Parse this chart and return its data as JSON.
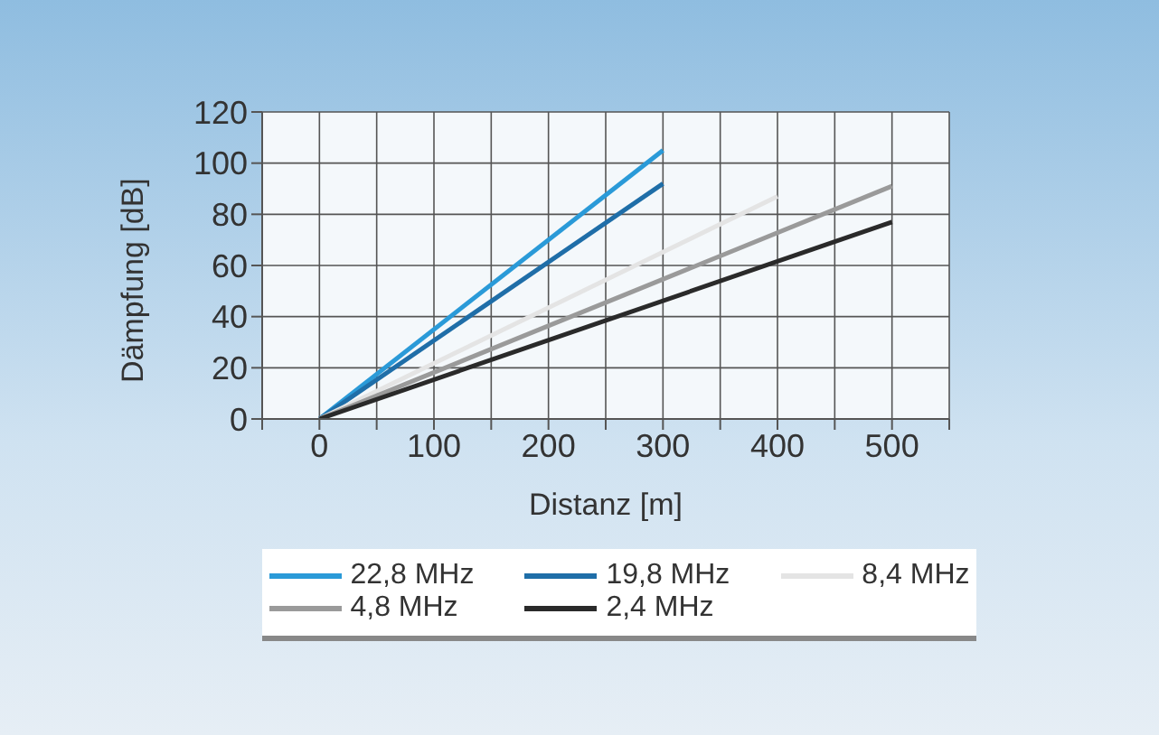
{
  "chart_data": {
    "type": "line",
    "xlabel": "Distanz [m]",
    "ylabel": "Dämpfung [dB]",
    "xlim": [
      -50,
      550
    ],
    "xticks": [
      {
        "value": -50,
        "label": null
      },
      0,
      {
        "value": 50,
        "label": null
      },
      100,
      {
        "value": 150,
        "label": null
      },
      200,
      {
        "value": 250,
        "label": null
      },
      300,
      {
        "value": 350,
        "label": null
      },
      400,
      {
        "value": 450,
        "label": null
      },
      500,
      {
        "value": 550,
        "label": null
      }
    ],
    "ylim": [
      0,
      120
    ],
    "yticks": [
      0,
      20,
      40,
      60,
      80,
      100,
      120
    ],
    "grid": true,
    "legend": "bottom",
    "marker": "none",
    "line_style": "solid",
    "series": [
      {
        "name": "22,8 MHz",
        "color": "#2a9ad8",
        "x": [
          0,
          300
        ],
        "values": [
          0,
          105
        ]
      },
      {
        "name": "19,8 MHz",
        "color": "#1f6ea8",
        "x": [
          0,
          300
        ],
        "values": [
          0,
          92
        ]
      },
      {
        "name": "8,4 MHz",
        "color": "#e4e4e4",
        "x": [
          0,
          400
        ],
        "values": [
          0,
          87
        ]
      },
      {
        "name": "4,8 MHz",
        "color": "#9a9a9a",
        "x": [
          0,
          500
        ],
        "values": [
          0,
          91
        ]
      },
      {
        "name": "2,4 MHz",
        "color": "#2a2a2a",
        "x": [
          0,
          500
        ],
        "values": [
          0,
          77
        ]
      }
    ]
  }
}
